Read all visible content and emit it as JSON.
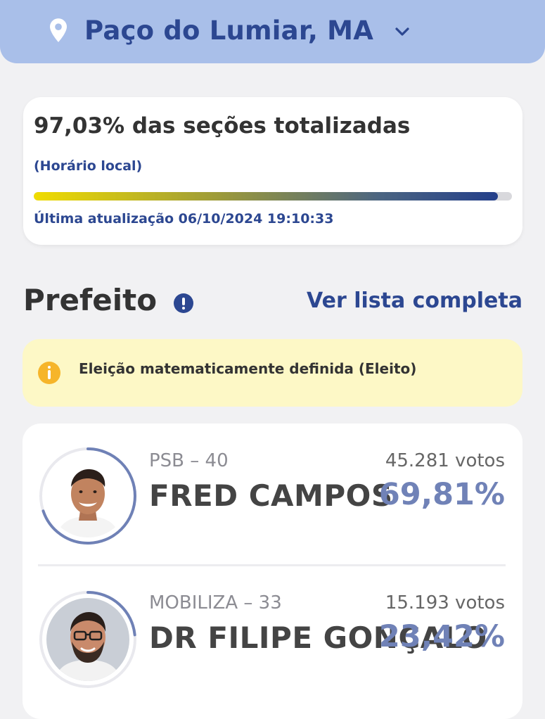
{
  "header": {
    "location": "Paço do Lumiar, MA",
    "pin_icon": "location-pin-icon",
    "chevron_icon": "chevron-down-icon"
  },
  "status": {
    "title": "97,03% das seções totalizadas",
    "subtitle": "(Horário local)",
    "progress_fraction": 0.9703,
    "updated": "Última atualização 06/10/2024 19:10:33"
  },
  "section": {
    "title": "Prefeito",
    "see_all": "Ver lista completa"
  },
  "notice": {
    "text": "Eleição matematicamente definida (Eleito)"
  },
  "candidates": [
    {
      "party": "PSB – 40",
      "name": "FRED CAMPOS",
      "votes": "45.281 votos",
      "percent": "69,81%",
      "fraction": 0.6981
    },
    {
      "party": "MOBILIZA – 33",
      "name": "DR FILIPE GONÇALO",
      "votes": "15.193 votos",
      "percent": "23,42%",
      "fraction": 0.2342
    }
  ],
  "colors": {
    "brand_blue": "#2c4791",
    "header_bg": "#a9bfe9",
    "notice_bg": "#fdf8c6",
    "info_icon": "#f6b52a",
    "percent_text": "#7082b7"
  }
}
